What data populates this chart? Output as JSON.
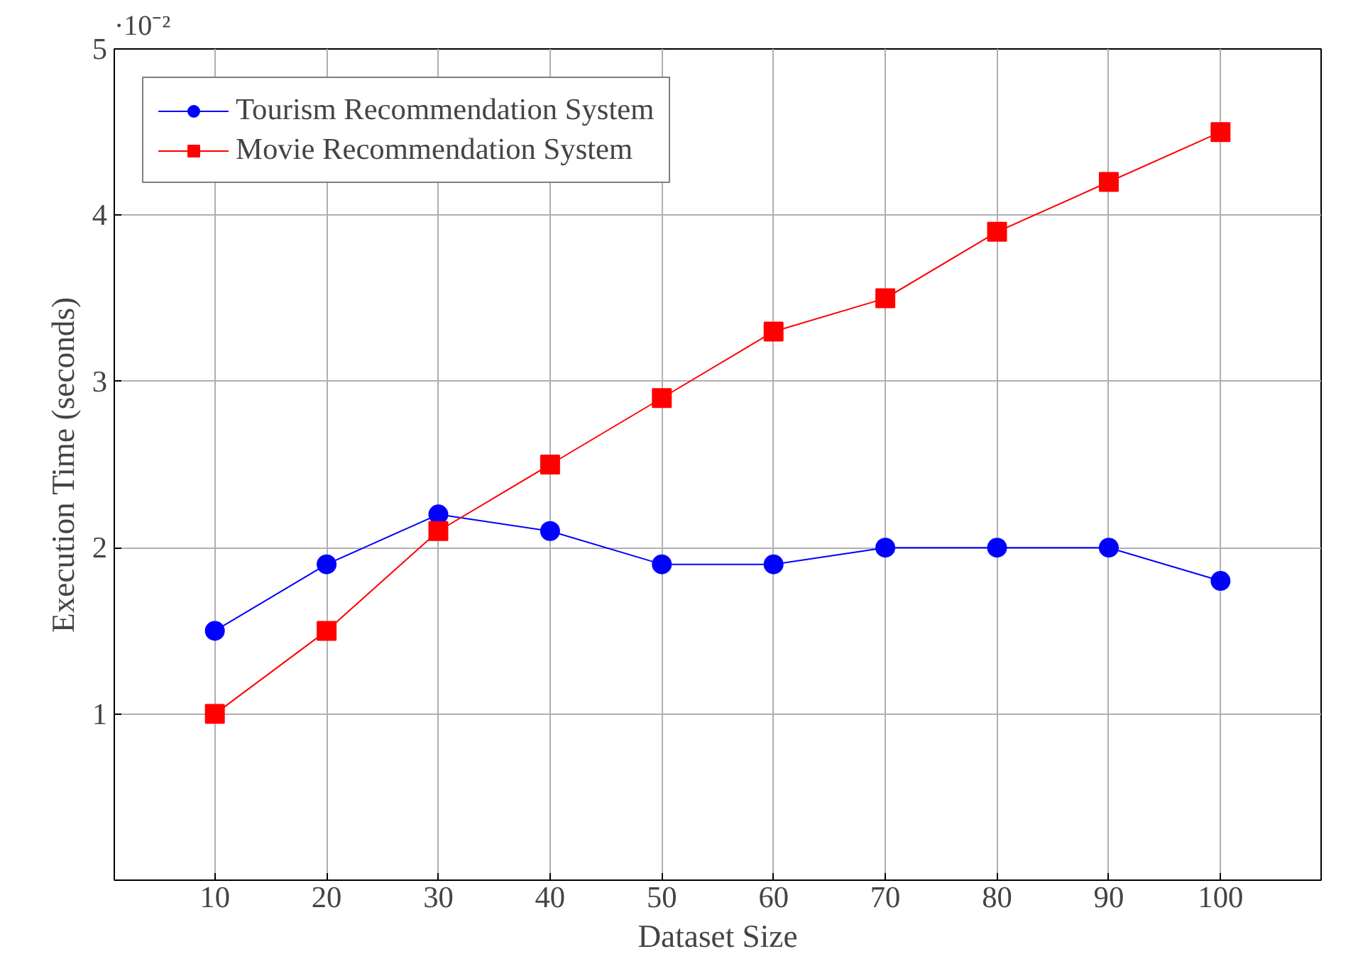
{
  "chart_data": {
    "type": "line",
    "xlabel": "Dataset Size",
    "ylabel": "Execution Time (seconds)",
    "annotations": [
      "·10⁻²"
    ],
    "x": [
      10,
      20,
      30,
      40,
      50,
      60,
      70,
      80,
      90,
      100
    ],
    "series": [
      {
        "name": "Tourism Recommendation System",
        "color": "#0000ff",
        "marker": "circle",
        "values": [
          1.5,
          1.9,
          2.2,
          2.1,
          1.9,
          1.9,
          2.0,
          2.0,
          2.0,
          1.8
        ]
      },
      {
        "name": "Movie Recommendation System",
        "color": "#ff0000",
        "marker": "square",
        "values": [
          1.0,
          1.5,
          2.1,
          2.5,
          2.9,
          3.3,
          3.5,
          3.9,
          4.2,
          4.5
        ]
      }
    ],
    "xlim": [
      1,
      109
    ],
    "ylim": [
      0,
      5
    ],
    "xticks": [
      10,
      20,
      30,
      40,
      50,
      60,
      70,
      80,
      90,
      100
    ],
    "yticks": [
      1,
      2,
      3,
      4,
      5
    ],
    "grid": true,
    "legend": "top left",
    "line_style": "solid"
  }
}
